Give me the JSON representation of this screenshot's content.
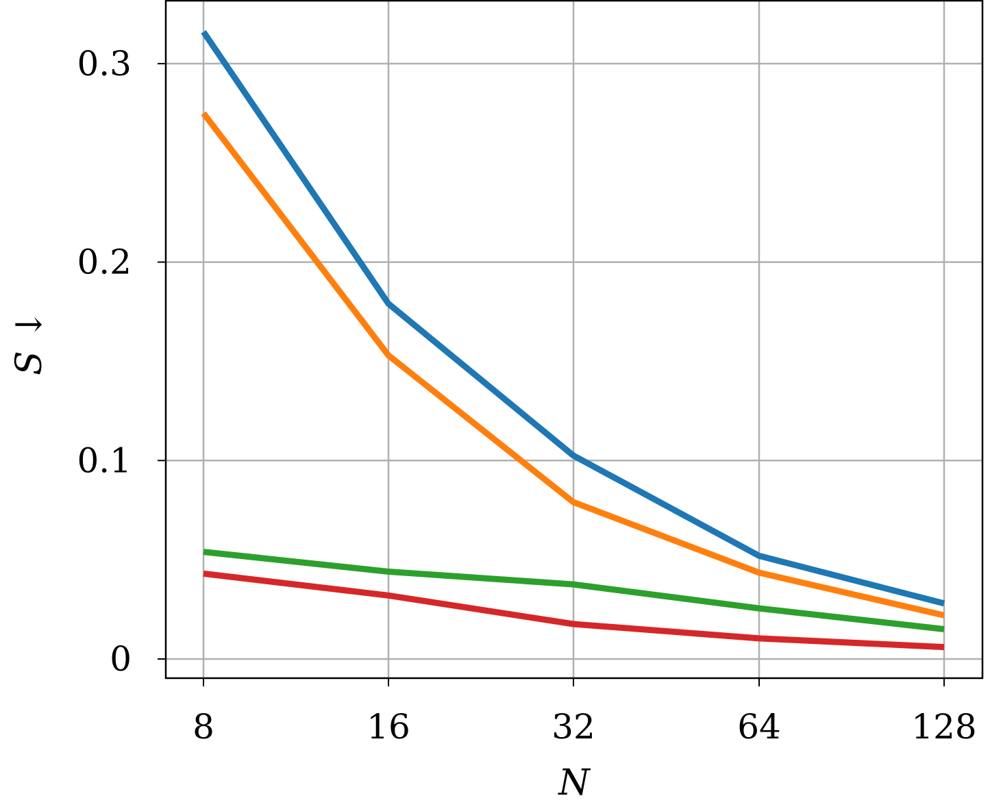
{
  "chart_data": {
    "type": "line",
    "title": "",
    "xlabel": "N",
    "ylabel": "S ↓",
    "x": [
      8,
      16,
      32,
      64,
      128
    ],
    "x_scale": "log2",
    "xticks": [
      "8",
      "16",
      "32",
      "64",
      "128"
    ],
    "yticks": [
      "0",
      "0.1",
      "0.2",
      "0.3"
    ],
    "ylim": [
      -0.01,
      0.325
    ],
    "grid": true,
    "legend": null,
    "series": [
      {
        "name": "blue",
        "color": "#1f77b4",
        "values": [
          0.316,
          0.179,
          0.1025,
          0.052,
          0.028
        ]
      },
      {
        "name": "orange",
        "color": "#ff7f0e",
        "values": [
          0.275,
          0.153,
          0.079,
          0.0435,
          0.022
        ]
      },
      {
        "name": "green",
        "color": "#2ca02c",
        "values": [
          0.054,
          0.044,
          0.0376,
          0.0255,
          0.015
        ]
      },
      {
        "name": "red",
        "color": "#d62728",
        "values": [
          0.043,
          0.032,
          0.0176,
          0.0104,
          0.006
        ]
      }
    ]
  }
}
